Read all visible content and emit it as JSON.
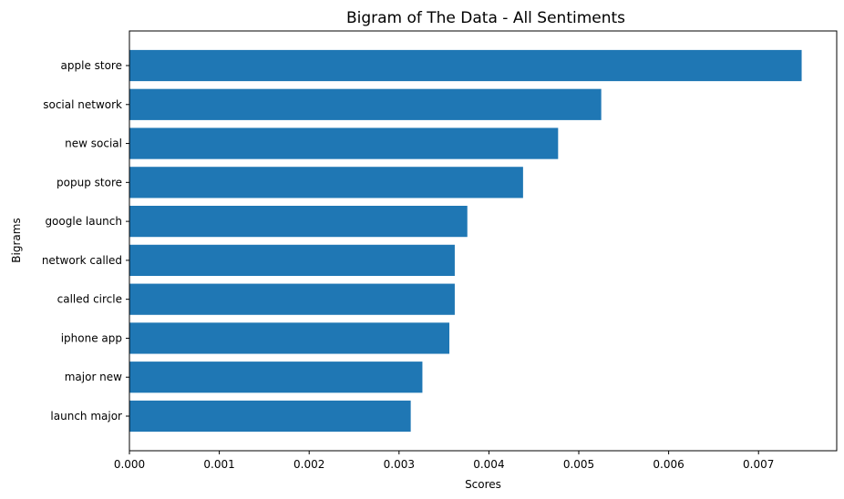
{
  "chart_data": {
    "type": "bar",
    "orientation": "horizontal",
    "title": "Bigram of The Data - All Sentiments",
    "xlabel": "Scores",
    "ylabel": "Bigrams",
    "categories": [
      "apple store",
      "social network",
      "new social",
      "popup store",
      "google launch",
      "network called",
      "called circle",
      "iphone app",
      "major new",
      "launch major"
    ],
    "values": [
      0.00748,
      0.00525,
      0.00477,
      0.00438,
      0.00376,
      0.00362,
      0.00362,
      0.00356,
      0.00326,
      0.00313
    ],
    "xlim": [
      0,
      0.00787
    ],
    "xticks": [
      0,
      0.001,
      0.002,
      0.003,
      0.004,
      0.005,
      0.006,
      0.007
    ],
    "xtick_labels": [
      "0.000",
      "0.001",
      "0.002",
      "0.003",
      "0.004",
      "0.005",
      "0.006",
      "0.007"
    ],
    "grid": false,
    "bar_color": "#1f77b4"
  }
}
